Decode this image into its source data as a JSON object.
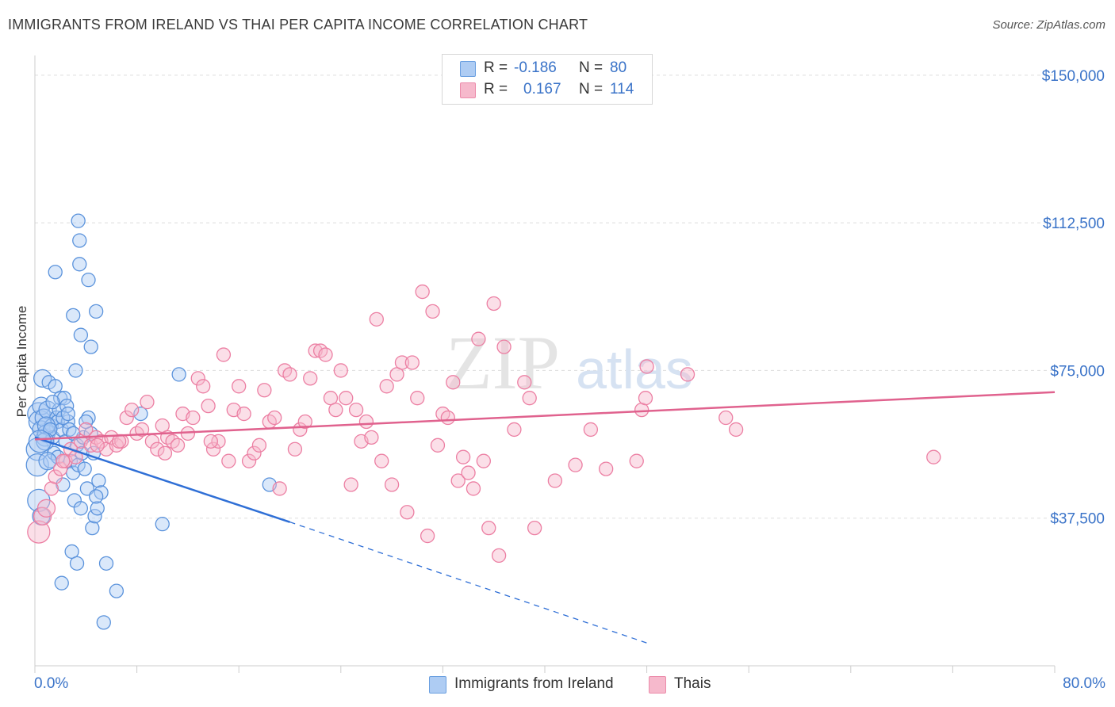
{
  "header": {
    "title": "IMMIGRANTS FROM IRELAND VS THAI PER CAPITA INCOME CORRELATION CHART",
    "source": "Source: ZipAtlas.com"
  },
  "watermark": {
    "zip": "ZIP",
    "atlas": "atlas"
  },
  "legend_top": {
    "rows": [
      {
        "r_label": "R =",
        "r_value": "-0.186",
        "n_label": "N =",
        "n_value": "80",
        "color": "#aeccf3"
      },
      {
        "r_label": "R =",
        "r_value": "0.167",
        "n_label": "N =",
        "n_value": "114",
        "color": "#f6b9cc"
      }
    ]
  },
  "legend_bottom": {
    "items": [
      {
        "label": "Immigrants from Ireland",
        "color": "#aeccf3"
      },
      {
        "label": "Thais",
        "color": "#f6b9cc"
      }
    ]
  },
  "chart_data": {
    "type": "scatter",
    "title": "IMMIGRANTS FROM IRELAND VS THAI PER CAPITA INCOME CORRELATION CHART",
    "xlabel": "",
    "ylabel": "Per Capita Income",
    "xlim": [
      0,
      80
    ],
    "ylim": [
      0,
      155000
    ],
    "x_tick_labels": [
      "0.0%",
      "80.0%"
    ],
    "y_ticks": [
      37500,
      75000,
      112500,
      150000
    ],
    "y_tick_labels": [
      "$37,500",
      "$75,000",
      "$112,500",
      "$150,000"
    ],
    "grid": true,
    "legend_position": "top-center",
    "series": [
      {
        "name": "Immigrants from Ireland",
        "color": "#5b93dc",
        "r": -0.186,
        "n": 80,
        "trend": {
          "x": [
            0,
            20
          ],
          "y": [
            58000,
            36500
          ],
          "dashed_to": [
            48,
            5800
          ]
        },
        "points": [
          [
            0.2,
            55000
          ],
          [
            0.2,
            51000
          ],
          [
            0.3,
            64000
          ],
          [
            0.4,
            62000
          ],
          [
            0.5,
            60000
          ],
          [
            0.5,
            66000
          ],
          [
            0.6,
            73000
          ],
          [
            0.7,
            63000
          ],
          [
            0.8,
            58000
          ],
          [
            0.9,
            59000
          ],
          [
            1.0,
            65000
          ],
          [
            1.1,
            72000
          ],
          [
            1.2,
            52000
          ],
          [
            1.3,
            61000
          ],
          [
            1.4,
            58000
          ],
          [
            1.5,
            54000
          ],
          [
            1.6,
            71000
          ],
          [
            1.7,
            63000
          ],
          [
            1.8,
            62000
          ],
          [
            1.9,
            65000
          ],
          [
            2.0,
            68000
          ],
          [
            2.1,
            60000
          ],
          [
            2.2,
            46000
          ],
          [
            2.3,
            68000
          ],
          [
            2.4,
            57000
          ],
          [
            2.5,
            66000
          ],
          [
            2.6,
            62000
          ],
          [
            2.7,
            60000
          ],
          [
            2.8,
            52000
          ],
          [
            2.9,
            29000
          ],
          [
            3.0,
            49000
          ],
          [
            3.1,
            42000
          ],
          [
            3.2,
            75000
          ],
          [
            3.3,
            56000
          ],
          [
            3.4,
            51000
          ],
          [
            3.6,
            40000
          ],
          [
            3.7,
            54000
          ],
          [
            3.8,
            58000
          ],
          [
            3.9,
            50000
          ],
          [
            4.1,
            45000
          ],
          [
            4.2,
            63000
          ],
          [
            4.4,
            59000
          ],
          [
            4.5,
            35000
          ],
          [
            4.6,
            54000
          ],
          [
            4.7,
            38000
          ],
          [
            4.9,
            40000
          ],
          [
            5.0,
            47000
          ],
          [
            5.2,
            44000
          ],
          [
            1.6,
            100000
          ],
          [
            3.0,
            89000
          ],
          [
            3.4,
            113000
          ],
          [
            3.3,
            26000
          ],
          [
            2.1,
            21000
          ],
          [
            3.5,
            102000
          ],
          [
            3.5,
            108000
          ],
          [
            3.6,
            84000
          ],
          [
            4.2,
            98000
          ],
          [
            4.4,
            81000
          ],
          [
            4.8,
            90000
          ],
          [
            5.6,
            26000
          ],
          [
            6.4,
            19000
          ],
          [
            5.4,
            11000
          ],
          [
            8.3,
            64000
          ],
          [
            10.0,
            36000
          ],
          [
            11.3,
            74000
          ],
          [
            18.4,
            46000
          ],
          [
            0.3,
            42000
          ],
          [
            0.5,
            38000
          ],
          [
            0.9,
            61000
          ],
          [
            1.2,
            60000
          ],
          [
            1.4,
            67000
          ],
          [
            1.8,
            53000
          ],
          [
            2.2,
            63000
          ],
          [
            2.6,
            64000
          ],
          [
            3.0,
            59000
          ],
          [
            1.0,
            52000
          ],
          [
            0.8,
            57000
          ],
          [
            4.0,
            62000
          ],
          [
            4.8,
            43000
          ],
          [
            0.4,
            57000
          ]
        ]
      },
      {
        "name": "Thais",
        "color": "#ec7fa3",
        "r": 0.167,
        "n": 114,
        "trend": {
          "x": [
            0,
            80
          ],
          "y": [
            57500,
            69500
          ]
        },
        "points": [
          [
            0.3,
            34000
          ],
          [
            0.6,
            38000
          ],
          [
            0.9,
            40000
          ],
          [
            1.3,
            45000
          ],
          [
            1.6,
            48000
          ],
          [
            2.0,
            50000
          ],
          [
            2.4,
            52000
          ],
          [
            2.8,
            55000
          ],
          [
            3.2,
            53000
          ],
          [
            3.6,
            57000
          ],
          [
            4.0,
            60000
          ],
          [
            4.4,
            56000
          ],
          [
            4.8,
            58000
          ],
          [
            5.2,
            57000
          ],
          [
            5.6,
            55000
          ],
          [
            6.0,
            58000
          ],
          [
            6.4,
            56000
          ],
          [
            6.8,
            57000
          ],
          [
            7.2,
            63000
          ],
          [
            7.6,
            65000
          ],
          [
            8.0,
            59000
          ],
          [
            8.4,
            60000
          ],
          [
            8.8,
            67000
          ],
          [
            9.2,
            57000
          ],
          [
            9.6,
            55000
          ],
          [
            10.0,
            61000
          ],
          [
            10.4,
            58000
          ],
          [
            10.8,
            57000
          ],
          [
            11.2,
            56000
          ],
          [
            11.6,
            64000
          ],
          [
            12.0,
            59000
          ],
          [
            12.4,
            63000
          ],
          [
            12.8,
            73000
          ],
          [
            13.2,
            71000
          ],
          [
            13.6,
            66000
          ],
          [
            14.0,
            55000
          ],
          [
            14.4,
            57000
          ],
          [
            14.8,
            79000
          ],
          [
            15.2,
            52000
          ],
          [
            15.6,
            65000
          ],
          [
            16.0,
            71000
          ],
          [
            16.4,
            64000
          ],
          [
            16.8,
            52000
          ],
          [
            17.2,
            54000
          ],
          [
            17.6,
            56000
          ],
          [
            18.0,
            70000
          ],
          [
            18.4,
            62000
          ],
          [
            18.8,
            63000
          ],
          [
            19.2,
            45000
          ],
          [
            19.6,
            75000
          ],
          [
            20.0,
            74000
          ],
          [
            20.4,
            55000
          ],
          [
            20.8,
            60000
          ],
          [
            21.2,
            62000
          ],
          [
            21.6,
            73000
          ],
          [
            22.0,
            80000
          ],
          [
            22.4,
            80000
          ],
          [
            22.8,
            79000
          ],
          [
            23.2,
            68000
          ],
          [
            23.6,
            65000
          ],
          [
            24.0,
            75000
          ],
          [
            24.4,
            68000
          ],
          [
            24.8,
            46000
          ],
          [
            25.2,
            65000
          ],
          [
            25.6,
            57000
          ],
          [
            26.0,
            62000
          ],
          [
            26.4,
            58000
          ],
          [
            26.8,
            88000
          ],
          [
            27.2,
            52000
          ],
          [
            27.6,
            71000
          ],
          [
            28.0,
            46000
          ],
          [
            28.4,
            74000
          ],
          [
            28.8,
            77000
          ],
          [
            29.2,
            39000
          ],
          [
            29.6,
            77000
          ],
          [
            30.0,
            68000
          ],
          [
            30.4,
            95000
          ],
          [
            30.8,
            33000
          ],
          [
            31.2,
            90000
          ],
          [
            31.6,
            56000
          ],
          [
            32.0,
            64000
          ],
          [
            32.4,
            63000
          ],
          [
            32.8,
            72000
          ],
          [
            33.2,
            47000
          ],
          [
            33.6,
            53000
          ],
          [
            34.0,
            49000
          ],
          [
            34.4,
            45000
          ],
          [
            34.8,
            83000
          ],
          [
            35.2,
            52000
          ],
          [
            35.6,
            35000
          ],
          [
            36.0,
            92000
          ],
          [
            36.4,
            28000
          ],
          [
            36.8,
            81000
          ],
          [
            37.6,
            60000
          ],
          [
            38.4,
            72000
          ],
          [
            38.8,
            68000
          ],
          [
            39.2,
            35000
          ],
          [
            40.8,
            47000
          ],
          [
            42.4,
            51000
          ],
          [
            43.6,
            60000
          ],
          [
            44.8,
            50000
          ],
          [
            47.2,
            52000
          ],
          [
            47.6,
            65000
          ],
          [
            47.9,
            68000
          ],
          [
            48.0,
            76000
          ],
          [
            51.2,
            74000
          ],
          [
            54.2,
            63000
          ],
          [
            55.0,
            60000
          ],
          [
            70.5,
            53000
          ],
          [
            2.2,
            52000
          ],
          [
            4.9,
            56000
          ],
          [
            6.6,
            57000
          ],
          [
            10.2,
            54000
          ],
          [
            13.8,
            57000
          ]
        ]
      }
    ]
  }
}
